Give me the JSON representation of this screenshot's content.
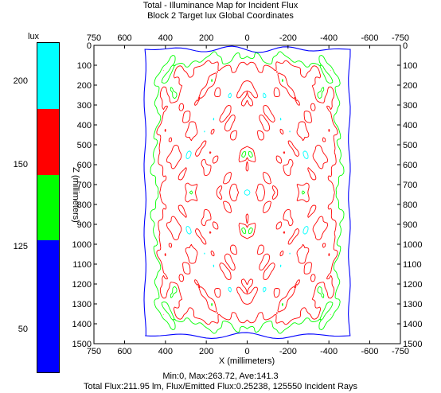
{
  "header": {
    "title": "Total - Illuminance Map for Incident Flux",
    "subtitle": "Block 2 Target lux    Global Coordinates"
  },
  "legend": {
    "unit": "lux",
    "ticks": [
      "200",
      "150",
      "125",
      "50"
    ],
    "bands": [
      {
        "color": "#00ffff",
        "from": 0.0,
        "to": 0.2
      },
      {
        "color": "#ff0000",
        "from": 0.2,
        "to": 0.4
      },
      {
        "color": "#00ff00",
        "from": 0.4,
        "to": 0.6
      },
      {
        "color": "#0000ff",
        "from": 0.6,
        "to": 1.0
      }
    ]
  },
  "footer": {
    "stats": "Min:0, Max:263.72, Ave:141.3",
    "flux": "Total Flux:211.95 lm, Flux/Emitted Flux:0.25238, 125550 Incident Rays"
  },
  "chart_data": {
    "type": "contour",
    "xlabel": "X (millimeters)",
    "ylabel": "Z (millimeters)",
    "xlim": [
      750,
      -750
    ],
    "ylim": [
      0,
      1500
    ],
    "x_ticks": [
      "750",
      "600",
      "400",
      "200",
      "0",
      "-200",
      "-400",
      "-600",
      "-750"
    ],
    "x_tick_values": [
      750,
      600,
      400,
      200,
      0,
      -200,
      -400,
      -600,
      -750
    ],
    "y_ticks": [
      "0",
      "100",
      "200",
      "300",
      "400",
      "500",
      "600",
      "700",
      "800",
      "900",
      "1000",
      "1100",
      "1200",
      "1300",
      "1400",
      "1500"
    ],
    "y_tick_values": [
      0,
      100,
      200,
      300,
      400,
      500,
      600,
      700,
      800,
      900,
      1000,
      1100,
      1200,
      1300,
      1400,
      1500
    ],
    "levels": [
      {
        "value": "50",
        "color": "#0000ff"
      },
      {
        "value": "125",
        "color": "#00ff00"
      },
      {
        "value": "150",
        "color": "#ff0000"
      },
      {
        "value": "200",
        "color": "#00ffff"
      }
    ],
    "boundary_x_range": [
      500,
      -500
    ],
    "boundary_z_range": [
      20,
      1460
    ],
    "grid": false
  }
}
